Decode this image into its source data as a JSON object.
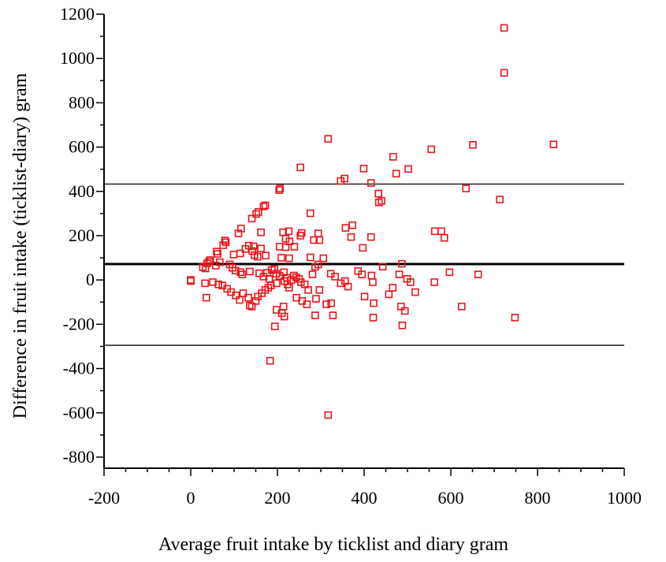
{
  "chart_data": {
    "type": "scatter",
    "title": "",
    "xlabel": "Average fruit intake by ticklist and diary gram",
    "ylabel": "Difference in fruit intake (ticklist-diary) gram",
    "xlim": [
      -200,
      1000
    ],
    "ylim": [
      -850,
      1200
    ],
    "xticks": [
      -200,
      0,
      200,
      400,
      600,
      800,
      1000
    ],
    "yticks": [
      -800,
      -600,
      -400,
      -200,
      0,
      200,
      400,
      600,
      800,
      1000,
      1200
    ],
    "reference_lines": [
      {
        "y": 433,
        "style": "thin"
      },
      {
        "y": 72,
        "style": "thick"
      },
      {
        "y": -295,
        "style": "thin"
      }
    ],
    "marker": {
      "shape": "open-square",
      "color": "#e8161b"
    },
    "grid": false,
    "series": [
      {
        "points": [
          [
            723,
            1138
          ],
          [
            723,
            935
          ],
          [
            837,
            612
          ],
          [
            651,
            610
          ],
          [
            317,
            637
          ],
          [
            555,
            590
          ],
          [
            467,
            556
          ],
          [
            253,
            508
          ],
          [
            399,
            503
          ],
          [
            502,
            501
          ],
          [
            474,
            480
          ],
          [
            346,
            447
          ],
          [
            355,
            458
          ],
          [
            416,
            438
          ],
          [
            206,
            413
          ],
          [
            635,
            413
          ],
          [
            204,
            406
          ],
          [
            433,
            390
          ],
          [
            440,
            357
          ],
          [
            434,
            350
          ],
          [
            713,
            363
          ],
          [
            172,
            337
          ],
          [
            168,
            332
          ],
          [
            156,
            307
          ],
          [
            151,
            298
          ],
          [
            276,
            301
          ],
          [
            141,
            277
          ],
          [
            373,
            247
          ],
          [
            357,
            235
          ],
          [
            213,
            215
          ],
          [
            256,
            212
          ],
          [
            253,
            200
          ],
          [
            226,
            220
          ],
          [
            294,
            210
          ],
          [
            116,
            232
          ],
          [
            563,
            220
          ],
          [
            578,
            220
          ],
          [
            110,
            210
          ],
          [
            162,
            215
          ],
          [
            416,
            194
          ],
          [
            370,
            194
          ],
          [
            585,
            190
          ],
          [
            79,
            178
          ],
          [
            81,
            170
          ],
          [
            219,
            186
          ],
          [
            228,
            174
          ],
          [
            284,
            180
          ],
          [
            297,
            180
          ],
          [
            75,
            157
          ],
          [
            205,
            150
          ],
          [
            219,
            148
          ],
          [
            145,
            152
          ],
          [
            162,
            142
          ],
          [
            239,
            150
          ],
          [
            134,
            155
          ],
          [
            142,
            130
          ],
          [
            126,
            140
          ],
          [
            60,
            128
          ],
          [
            62,
            118
          ],
          [
            99,
            115
          ],
          [
            114,
            120
          ],
          [
            147,
            112
          ],
          [
            154,
            105
          ],
          [
            173,
            110
          ],
          [
            209,
            100
          ],
          [
            227,
            98
          ],
          [
            276,
            102
          ],
          [
            306,
            98
          ],
          [
            397,
            145
          ],
          [
            487,
            73
          ],
          [
            42,
            83
          ],
          [
            45,
            90
          ],
          [
            38,
            75
          ],
          [
            28,
            58
          ],
          [
            34,
            52
          ],
          [
            58,
            65
          ],
          [
            67,
            80
          ],
          [
            90,
            70
          ],
          [
            96,
            55
          ],
          [
            103,
            42
          ],
          [
            115,
            35
          ],
          [
            119,
            25
          ],
          [
            136,
            38
          ],
          [
            158,
            30
          ],
          [
            168,
            15
          ],
          [
            176,
            32
          ],
          [
            181,
            5
          ],
          [
            187,
            45
          ],
          [
            193,
            50
          ],
          [
            197,
            28
          ],
          [
            205,
            18
          ],
          [
            215,
            35
          ],
          [
            222,
            10
          ],
          [
            232,
            0
          ],
          [
            238,
            20
          ],
          [
            243,
            12
          ],
          [
            250,
            5
          ],
          [
            254,
            -10
          ],
          [
            263,
            -20
          ],
          [
            271,
            -45
          ],
          [
            281,
            25
          ],
          [
            287,
            60
          ],
          [
            294,
            70
          ],
          [
            323,
            28
          ],
          [
            333,
            15
          ],
          [
            346,
            -15
          ],
          [
            356,
            -5
          ],
          [
            363,
            -30
          ],
          [
            386,
            40
          ],
          [
            395,
            25
          ],
          [
            417,
            20
          ],
          [
            420,
            -10
          ],
          [
            443,
            60
          ],
          [
            481,
            25
          ],
          [
            499,
            5
          ],
          [
            518,
            -55
          ],
          [
            562,
            -10
          ],
          [
            597,
            35
          ],
          [
            663,
            25
          ],
          [
            0,
            0
          ],
          [
            0,
            -5
          ],
          [
            33,
            -15
          ],
          [
            51,
            -10
          ],
          [
            64,
            -20
          ],
          [
            73,
            -25
          ],
          [
            84,
            -40
          ],
          [
            93,
            -55
          ],
          [
            104,
            -70
          ],
          [
            113,
            -90
          ],
          [
            121,
            -60
          ],
          [
            133,
            -80
          ],
          [
            141,
            -120
          ],
          [
            150,
            -95
          ],
          [
            155,
            -75
          ],
          [
            164,
            -60
          ],
          [
            172,
            -45
          ],
          [
            179,
            -35
          ],
          [
            185,
            -25
          ],
          [
            198,
            -15
          ],
          [
            216,
            -5
          ],
          [
            223,
            -20
          ],
          [
            227,
            -35
          ],
          [
            244,
            -80
          ],
          [
            257,
            -95
          ],
          [
            268,
            -110
          ],
          [
            289,
            -85
          ],
          [
            297,
            -45
          ],
          [
            313,
            -110
          ],
          [
            324,
            -105
          ],
          [
            328,
            -160
          ],
          [
            287,
            -160
          ],
          [
            401,
            -75
          ],
          [
            422,
            -105
          ],
          [
            457,
            -65
          ],
          [
            466,
            -35
          ],
          [
            485,
            -120
          ],
          [
            494,
            -140
          ],
          [
            507,
            -10
          ],
          [
            625,
            -120
          ],
          [
            748,
            -170
          ],
          [
            198,
            -135
          ],
          [
            210,
            -150
          ],
          [
            214,
            -120
          ],
          [
            216,
            -165
          ],
          [
            194,
            -210
          ],
          [
            421,
            -170
          ],
          [
            488,
            -205
          ],
          [
            36,
            -80
          ],
          [
            136,
            -115
          ],
          [
            183,
            -365
          ],
          [
            317,
            -610
          ]
        ]
      }
    ]
  }
}
